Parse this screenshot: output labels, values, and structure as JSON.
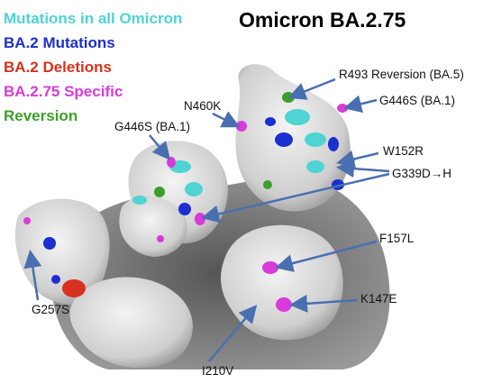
{
  "title": "Omicron BA.2.75",
  "legend": [
    {
      "label": "Mutations in all Omicron",
      "color": "#4fd3d3"
    },
    {
      "label": "BA.2 Mutations",
      "color": "#1c2fd0"
    },
    {
      "label": "BA.2 Deletions",
      "color": "#d8311f"
    },
    {
      "label": "BA.2.75 Specific",
      "color": "#d93ad9"
    },
    {
      "label": "Reversion",
      "color": "#3c9f2a"
    }
  ],
  "annotations": [
    {
      "text": "R493 Reversion (BA.5)"
    },
    {
      "text": "G446S (BA.1)"
    },
    {
      "text": "N460K"
    },
    {
      "text": "G446S (BA.1)"
    },
    {
      "text": "W152R"
    },
    {
      "text": "G339D→H"
    },
    {
      "text": "F157L"
    },
    {
      "text": "K147E"
    },
    {
      "text": "G257S"
    },
    {
      "text": "I210V"
    }
  ]
}
